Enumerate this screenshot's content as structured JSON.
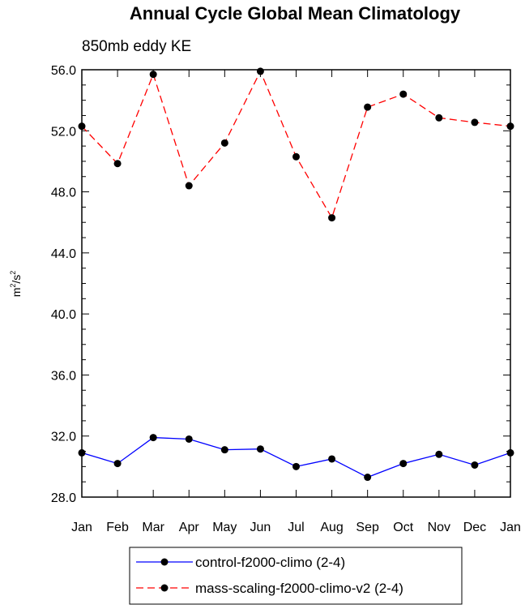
{
  "chart_data": {
    "type": "line",
    "title": "Annual Cycle Global Mean Climatology",
    "subtitle": "850mb eddy KE",
    "ylabel_base": "m",
    "ylabel_exp": "2",
    "ylabel_sep": "/s",
    "ylabel_exp2": "2",
    "categories": [
      "Jan",
      "Feb",
      "Mar",
      "Apr",
      "May",
      "Jun",
      "Jul",
      "Aug",
      "Sep",
      "Oct",
      "Nov",
      "Dec",
      "Jan"
    ],
    "ylim": [
      28.0,
      56.0
    ],
    "yticks": [
      "28.0",
      "32.0",
      "36.0",
      "40.0",
      "44.0",
      "48.0",
      "52.0",
      "56.0"
    ],
    "grid": false,
    "legend_position": "bottom",
    "series": [
      {
        "name": "control-f2000-climo (2-4)",
        "color": "#0000ff",
        "dash": "solid",
        "values": [
          30.9,
          30.2,
          31.9,
          31.8,
          31.1,
          31.15,
          30.0,
          30.5,
          29.3,
          30.2,
          30.8,
          30.1,
          30.9
        ]
      },
      {
        "name": "mass-scaling-f2000-climo-v2 (2-4)",
        "color": "#ff0000",
        "dash": "dashed",
        "values": [
          52.3,
          49.85,
          55.7,
          48.4,
          51.2,
          55.9,
          50.3,
          46.3,
          53.55,
          54.4,
          52.85,
          52.55,
          52.3
        ]
      }
    ]
  }
}
